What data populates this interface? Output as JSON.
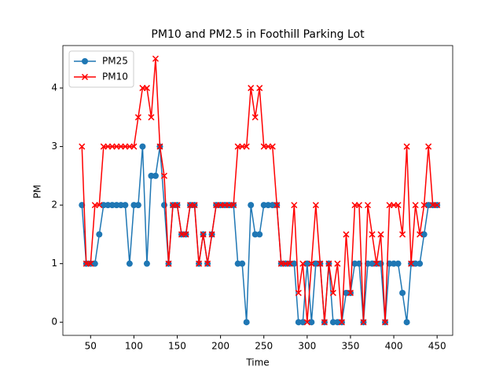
{
  "chart_data": {
    "type": "line",
    "title": "PM10 and PM2.5 in Foothill Parking Lot",
    "x_label": "Time",
    "y_label": "PM",
    "x": [
      40,
      45,
      50,
      55,
      60,
      65,
      70,
      75,
      80,
      85,
      90,
      95,
      100,
      105,
      110,
      115,
      120,
      125,
      130,
      135,
      140,
      145,
      150,
      155,
      160,
      165,
      170,
      175,
      180,
      185,
      190,
      195,
      200,
      205,
      210,
      215,
      220,
      225,
      230,
      235,
      240,
      245,
      250,
      255,
      260,
      265,
      270,
      275,
      280,
      285,
      290,
      295,
      300,
      305,
      310,
      315,
      320,
      325,
      330,
      335,
      340,
      345,
      350,
      355,
      360,
      365,
      370,
      375,
      380,
      385,
      390,
      395,
      400,
      405,
      410,
      415,
      420,
      425,
      430,
      435,
      440,
      445,
      450
    ],
    "series": [
      {
        "name": "PM25",
        "color": "#1f77b4",
        "marker": "circle",
        "values": [
          2,
          1,
          1,
          1,
          1.5,
          2,
          2,
          2,
          2,
          2,
          2,
          1,
          2,
          2,
          3,
          1,
          2.5,
          2.5,
          3,
          2,
          1,
          2,
          2,
          1.5,
          1.5,
          2,
          2,
          1,
          1.5,
          1,
          1.5,
          2,
          2,
          2,
          2,
          2,
          1,
          1,
          0,
          2,
          1.5,
          1.5,
          2,
          2,
          2,
          2,
          1,
          1,
          1,
          1,
          0,
          0,
          1,
          0,
          1,
          1,
          0,
          1,
          0,
          0,
          0,
          0.5,
          0.5,
          1,
          1,
          0,
          1,
          1,
          1,
          1,
          0,
          1,
          1,
          1,
          0.5,
          0,
          1,
          1,
          1,
          1.5,
          2,
          2,
          2
        ]
      },
      {
        "name": "PM10",
        "color": "#ff0000",
        "marker": "x",
        "values": [
          3,
          1,
          1,
          2,
          2,
          3,
          3,
          3,
          3,
          3,
          3,
          3,
          3,
          3.5,
          4,
          4,
          3.5,
          4.5,
          3,
          2.5,
          1,
          2,
          2,
          1.5,
          1.5,
          2,
          2,
          1,
          1.5,
          1,
          1.5,
          2,
          2,
          2,
          2,
          2,
          3,
          3,
          3,
          4,
          3.5,
          4,
          3,
          3,
          3,
          2,
          1,
          1,
          1,
          2,
          0.5,
          1,
          0,
          1,
          2,
          1,
          0,
          1,
          0.5,
          1,
          0,
          1.5,
          0.5,
          2,
          2,
          0,
          2,
          1.5,
          1,
          1.5,
          0,
          2,
          2,
          2,
          1.5,
          3,
          1,
          2,
          1.5,
          2,
          3,
          2,
          2
        ]
      }
    ],
    "xlim": [
      18,
      468
    ],
    "ylim": [
      -0.225,
      4.725
    ],
    "xticks": [
      50,
      100,
      150,
      200,
      250,
      300,
      350,
      400,
      450
    ],
    "yticks": [
      0,
      1,
      2,
      3,
      4
    ],
    "legend": "upper left"
  }
}
